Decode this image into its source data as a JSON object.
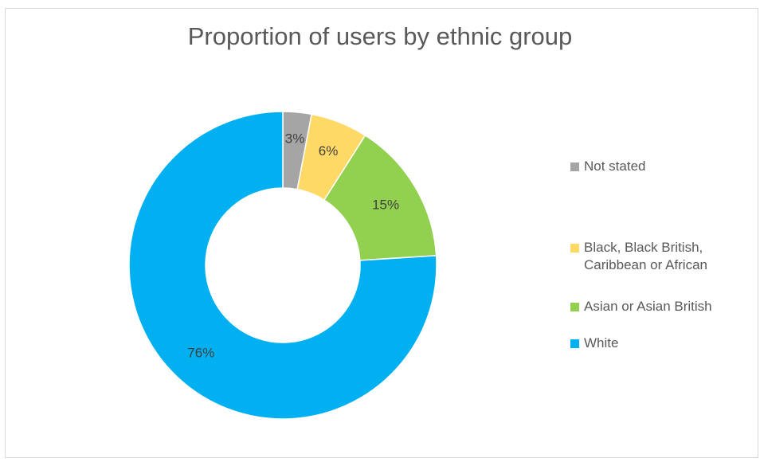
{
  "chart_data": {
    "type": "pie",
    "variant": "doughnut",
    "title": "Proportion of users by ethnic group",
    "legend_position": "right",
    "slices": [
      {
        "label": "Not stated",
        "value": 3,
        "data_label": "3%",
        "color": "#a5a5a5"
      },
      {
        "label": "Black, Black British,\nCaribbean or African",
        "value": 6,
        "data_label": "6%",
        "color": "#ffd966"
      },
      {
        "label": "Asian or Asian British",
        "value": 15,
        "data_label": "15%",
        "color": "#92d050"
      },
      {
        "label": "White",
        "value": 76,
        "data_label": "76%",
        "color": "#00b0f0"
      }
    ]
  }
}
